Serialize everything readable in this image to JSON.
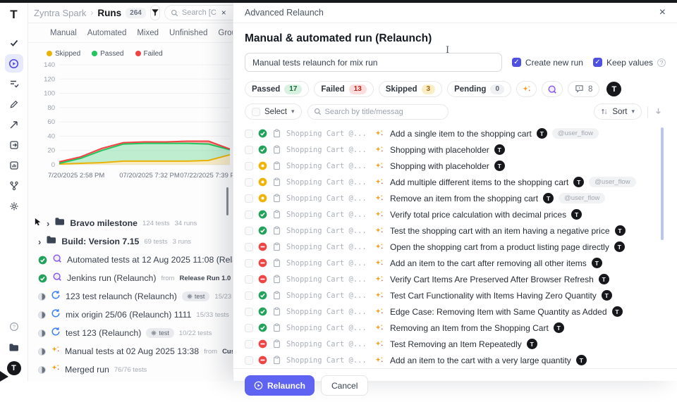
{
  "header": {
    "logo": "T",
    "project": "Zyntra Spark",
    "crumb_sep": "›",
    "page": "Runs",
    "count": "264",
    "search_placeholder": "Search [C",
    "search_clear": "×"
  },
  "sidebar": {
    "items": [
      {
        "name": "check-icon",
        "active": false
      },
      {
        "name": "runs-play-icon",
        "active": true
      },
      {
        "name": "checklist-icon",
        "active": false
      },
      {
        "name": "pencil-icon",
        "active": false
      },
      {
        "name": "flaky-arrow-icon",
        "active": false
      },
      {
        "name": "export-box-icon",
        "active": false
      },
      {
        "name": "report-icon",
        "active": false
      },
      {
        "name": "branch-icon",
        "active": false
      },
      {
        "name": "gear-icon",
        "active": false
      }
    ],
    "bottom": [
      {
        "name": "help-icon"
      },
      {
        "name": "folder-icon"
      }
    ],
    "avatar": "T"
  },
  "tabs": {
    "items": [
      "Manual",
      "Automated",
      "Mixed",
      "Unfinished",
      "Groups"
    ]
  },
  "chart_data": {
    "type": "area",
    "title": "",
    "legend": [
      "Skipped",
      "Passed",
      "Failed"
    ],
    "legend_colors": [
      "#eab308",
      "#22c55e",
      "#ef4444"
    ],
    "x_labels": [
      "7/20/2025 2:58 PM",
      "07/20/2025 7:32 PM",
      "07/22/2025 7:39 PM"
    ],
    "yticks": [
      0,
      20,
      40,
      60,
      80,
      100,
      120,
      140
    ],
    "ylim": [
      0,
      140
    ],
    "grid": true,
    "values_are_stacked_tops": true,
    "series": [
      {
        "name": "Skipped",
        "color": "#eab308",
        "values": [
          1,
          2,
          3,
          5,
          5,
          5,
          5,
          6,
          14
        ]
      },
      {
        "name": "Passed",
        "color": "#22c55e",
        "values": [
          2,
          9,
          20,
          29,
          30,
          30,
          30,
          29,
          21
        ]
      },
      {
        "name": "Failed",
        "color": "#ef4444",
        "values": [
          4,
          11,
          23,
          31,
          32,
          32,
          33,
          33,
          22
        ]
      }
    ]
  },
  "runs": [
    {
      "kind": "folder",
      "title": "Bravo milestone",
      "meta": "124 tests",
      "meta2": "34 runs",
      "cursor": true
    },
    {
      "kind": "folder",
      "title": "Build: Version 7.15",
      "meta": "69 tests",
      "meta2": "3 runs"
    },
    {
      "kind": "run",
      "status": "passed",
      "icon": "automation-icon",
      "title": "Automated tests at 12 Aug 2025 11:08 (Relaunch)",
      "from_label": "from"
    },
    {
      "kind": "run",
      "status": "passed",
      "icon": "automation-icon",
      "title": "Jenkins run (Relaunch)",
      "from_label": "from",
      "from_value": "Release Run 1.0",
      "chip": "test",
      "meta": "13 t"
    },
    {
      "kind": "run",
      "status": "progress",
      "icon": "sync-icon",
      "title": "123 test relaunch (Relaunch)",
      "chip": "test",
      "meta": "15/23 tests"
    },
    {
      "kind": "run",
      "status": "progress",
      "icon": "sync-icon",
      "title": "mix origin 25/06 (Relaunch) 1111",
      "meta": "15/33 tests"
    },
    {
      "kind": "run",
      "status": "progress",
      "icon": "sync-icon",
      "title": "test 123  (Relaunch)",
      "chip": "test",
      "meta": "10/22 tests"
    },
    {
      "kind": "run",
      "status": "progress",
      "icon": "sparkles-icon",
      "title": "Manual tests at 02 Aug 2025 13:38",
      "from_label": "from",
      "from_value": "Custom Selection"
    },
    {
      "kind": "run",
      "status": "progress",
      "icon": "sparkles-icon",
      "title": "Merged run",
      "meta": "76/76 tests"
    }
  ],
  "modal": {
    "title": "Advanced Relaunch",
    "close": "×",
    "heading": "Manual & automated run (Relaunch)",
    "name_input": "Manual tests relaunch for mix run",
    "checkboxes": [
      {
        "label": "Create new run",
        "checked": true
      },
      {
        "label": "Keep values",
        "checked": true,
        "help": "?"
      }
    ],
    "filters": [
      {
        "label": "Passed",
        "count": "17",
        "type": "passed"
      },
      {
        "label": "Failed",
        "count": "13",
        "type": "failed"
      },
      {
        "label": "Skipped",
        "count": "3",
        "type": "skipped"
      },
      {
        "label": "Pending",
        "count": "0",
        "type": "pending"
      }
    ],
    "comment_count": "8",
    "avatar": "T",
    "toolbar": {
      "select_label": "Select",
      "search_placeholder": "Search by title/messag",
      "sort_label": "Sort"
    },
    "case_prefix": "Shopping Cart @...",
    "tests": [
      {
        "status": "passed",
        "title": "Add a single item to the shopping cart",
        "tag": "@user_flow"
      },
      {
        "status": "passed",
        "title": "Shopping with placeholder",
        "tag": ""
      },
      {
        "status": "skipped",
        "title": "Shopping with placeholder",
        "tag": ""
      },
      {
        "status": "skipped",
        "title": "Add multiple different items to the shopping cart",
        "tag": "@user_flow"
      },
      {
        "status": "skipped",
        "title": "Remove an item from the shopping cart",
        "tag": "@user_flow"
      },
      {
        "status": "passed",
        "title": "Verify total price calculation with decimal prices",
        "tag": ""
      },
      {
        "status": "passed",
        "title": "Test the shopping cart with an item having a negative price",
        "tag": ""
      },
      {
        "status": "failed",
        "title": "Open the shopping cart from a product listing page directly",
        "tag": ""
      },
      {
        "status": "failed",
        "title": "Add an item to the cart after removing all other items",
        "tag": ""
      },
      {
        "status": "failed",
        "title": "Verify Cart Items Are Preserved After Browser Refresh",
        "tag": ""
      },
      {
        "status": "passed",
        "title": "Test Cart Functionality with Items Having Zero Quantity",
        "tag": ""
      },
      {
        "status": "passed",
        "title": "Edge Case: Removing Item with Same Quantity as Added",
        "tag": ""
      },
      {
        "status": "passed",
        "title": "Removing an Item from the Shopping Cart",
        "tag": ""
      },
      {
        "status": "failed",
        "title": "Test Removing an Item Repeatedly",
        "tag": ""
      },
      {
        "status": "failed",
        "title": "Add an item to the cart with a very large quantity",
        "tag": ""
      }
    ],
    "footer": {
      "relaunch_label": "Relaunch",
      "cancel_label": "Cancel"
    }
  },
  "colors": {
    "accent": "#5f63f2",
    "passed": "#22a35c",
    "skipped": "#f0b409",
    "failed": "#ee4545",
    "automation": "#8b5cf6",
    "sync": "#3b82f6"
  }
}
